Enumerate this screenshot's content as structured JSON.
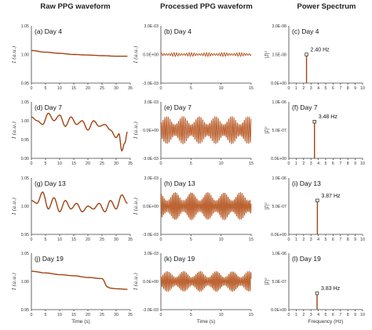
{
  "column_titles": [
    "Raw PPG waveform",
    "Processed PPG waveform",
    "Power Spectrum"
  ],
  "shared_x_labels": [
    "Time (s)",
    "Time (s)",
    "Frequency (Hz)"
  ],
  "chart_data": [
    {
      "id": "a",
      "type": "line",
      "annotation": "(a) Day 4",
      "ylabel": "I (a.u.)",
      "xlabel": "",
      "xlim": [
        0,
        35
      ],
      "ylim": [
        0.95,
        1.05
      ],
      "xticks": [
        0,
        5,
        10,
        15,
        20,
        25,
        30,
        35
      ],
      "yticks": [
        "0.95",
        "1.00",
        "1.05"
      ],
      "series": [
        {
          "x": [
            0,
            5,
            10,
            15,
            20,
            25,
            30,
            34
          ],
          "y": [
            1.007,
            1.004,
            1.002,
            1.0,
            0.999,
            0.998,
            0.997,
            0.997
          ]
        }
      ]
    },
    {
      "id": "b",
      "type": "line",
      "annotation": "(b) Day 4",
      "ylabel": "I (a.u.)",
      "xlabel": "",
      "xlim": [
        0,
        15
      ],
      "ylim": [
        -0.003,
        0.003
      ],
      "xticks": [
        0,
        5,
        10,
        15
      ],
      "yticks": [
        "-3.0E-03",
        "0.0E+00",
        "3.0E-03"
      ],
      "series": [
        {
          "x": [
            0,
            15
          ],
          "amplitude": 0.0002,
          "frequency_hz": 2.4
        }
      ]
    },
    {
      "id": "c",
      "type": "bar",
      "annotation": "(c) Day 4",
      "ylabel": "|I|²",
      "xlabel": "",
      "xlim": [
        0,
        10
      ],
      "ylim": [
        0,
        3e-08
      ],
      "xticks": [
        0,
        1,
        2,
        3,
        4,
        5,
        6,
        7,
        8,
        9,
        10
      ],
      "yticks": [
        "0.0E+00",
        "1.5E-08",
        "3.0E-08"
      ],
      "peak_label": "2.40 Hz",
      "series": [
        {
          "x": [
            2.4
          ],
          "y": [
            1.5e-08
          ]
        }
      ]
    },
    {
      "id": "d",
      "type": "line",
      "annotation": "(d) Day 7",
      "ylabel": "I (a.u.)",
      "xlabel": "",
      "xlim": [
        0,
        35
      ],
      "ylim": [
        0.9,
        1.05
      ],
      "xticks": [
        0,
        5,
        10,
        15,
        20,
        25,
        30,
        35
      ],
      "yticks": [
        "0.90",
        "0.95",
        "1.00",
        "1.05"
      ],
      "series": [
        {
          "x": [
            0,
            2,
            4,
            6,
            8,
            10,
            12,
            14,
            16,
            18,
            20,
            22,
            24,
            26,
            28,
            30,
            31,
            32,
            33,
            34
          ],
          "y": [
            1.01,
            1.0,
            0.99,
            1.02,
            1.0,
            1.015,
            0.985,
            1.01,
            0.99,
            1.0,
            0.975,
            1.0,
            0.985,
            0.99,
            0.975,
            0.955,
            0.965,
            0.92,
            0.94,
            0.97
          ]
        }
      ]
    },
    {
      "id": "e",
      "type": "line",
      "annotation": "(e) Day 7",
      "ylabel": "I (a.u.)",
      "xlabel": "",
      "xlim": [
        0,
        15
      ],
      "ylim": [
        -0.003,
        0.003
      ],
      "xticks": [
        0,
        5,
        10,
        15
      ],
      "yticks": [
        "-3.0E-03",
        "0.0E+00",
        "3.0E-03"
      ],
      "series": [
        {
          "x": [
            0,
            15
          ],
          "amplitude": 0.0015,
          "frequency_hz": 3.48
        }
      ]
    },
    {
      "id": "f",
      "type": "bar",
      "annotation": "(f) Day 7",
      "ylabel": "|I|²",
      "xlabel": "",
      "xlim": [
        0,
        10
      ],
      "ylim": [
        0,
        1e-06
      ],
      "xticks": [
        0,
        1,
        2,
        3,
        4,
        5,
        6,
        7,
        8,
        9,
        10
      ],
      "yticks": [
        "0.0E+00",
        "5.0E-07",
        "1.0E-06"
      ],
      "peak_label": "3.48 Hz",
      "series": [
        {
          "x": [
            3.48
          ],
          "y": [
            6.5e-07
          ]
        }
      ]
    },
    {
      "id": "g",
      "type": "line",
      "annotation": "(g) Day 13",
      "ylabel": "I (a.u.)",
      "xlabel": "",
      "xlim": [
        0,
        35
      ],
      "ylim": [
        0.95,
        1.05
      ],
      "xticks": [
        0,
        5,
        10,
        15,
        20,
        25,
        30,
        35
      ],
      "yticks": [
        "0.95",
        "1.00",
        "1.05"
      ],
      "series": [
        {
          "x": [
            0,
            2,
            4,
            6,
            8,
            10,
            12,
            14,
            16,
            18,
            20,
            22,
            24,
            26,
            28,
            30,
            32,
            34
          ],
          "y": [
            1.01,
            1.005,
            1.025,
            0.995,
            1.015,
            0.99,
            1.01,
            0.995,
            1.005,
            0.99,
            1.0,
            0.995,
            1.005,
            0.99,
            1.01,
            0.995,
            1.02,
            1.005
          ]
        }
      ]
    },
    {
      "id": "h",
      "type": "line",
      "annotation": "(h) Day 13",
      "ylabel": "I (a.u.)",
      "xlabel": "",
      "xlim": [
        0,
        15
      ],
      "ylim": [
        -0.003,
        0.003
      ],
      "xticks": [
        0,
        5,
        10,
        15
      ],
      "yticks": [
        "-3.0E-03",
        "0.0E+00",
        "3.0E-03"
      ],
      "series": [
        {
          "x": [
            0,
            15
          ],
          "amplitude": 0.0015,
          "frequency_hz": 3.87
        }
      ]
    },
    {
      "id": "i",
      "type": "bar",
      "annotation": "(i) Day 13",
      "ylabel": "|I|²",
      "xlabel": "",
      "xlim": [
        0,
        10
      ],
      "ylim": [
        0,
        1e-06
      ],
      "xticks": [
        0,
        1,
        2,
        3,
        4,
        5,
        6,
        7,
        8,
        9,
        10
      ],
      "yticks": [
        "0.0E+00",
        "5.0E-07",
        "1.0E-06"
      ],
      "peak_label": "3.87 Hz",
      "series": [
        {
          "x": [
            3.87
          ],
          "y": [
            6e-07
          ]
        }
      ]
    },
    {
      "id": "j",
      "type": "line",
      "annotation": "(j) Day 19",
      "ylabel": "I (a.u.)",
      "xlabel": "Time (s)",
      "xlim": [
        0,
        35
      ],
      "ylim": [
        0.95,
        1.05
      ],
      "xticks": [
        0,
        5,
        10,
        15,
        20,
        25,
        30,
        35
      ],
      "yticks": [
        "0.95",
        "1.00",
        "1.05"
      ],
      "series": [
        {
          "x": [
            0,
            5,
            10,
            15,
            20,
            25,
            27,
            28,
            30,
            34
          ],
          "y": [
            1.018,
            1.015,
            1.012,
            1.01,
            1.007,
            1.005,
            0.99,
            0.988,
            0.987,
            0.986
          ]
        }
      ]
    },
    {
      "id": "k",
      "type": "line",
      "annotation": "(k) Day 19",
      "ylabel": "I (a.u.)",
      "xlabel": "Time (s)",
      "xlim": [
        0,
        15
      ],
      "ylim": [
        -0.003,
        0.003
      ],
      "xticks": [
        0,
        5,
        10,
        15
      ],
      "yticks": [
        "-3.0E-03",
        "0.0E+00",
        "3.0E-03"
      ],
      "series": [
        {
          "x": [
            0,
            15
          ],
          "amplitude": 0.0011,
          "frequency_hz": 3.83
        }
      ]
    },
    {
      "id": "l",
      "type": "bar",
      "annotation": "(l) Day 19",
      "ylabel": "|I|²",
      "xlabel": "Frequency (Hz)",
      "xlim": [
        0,
        10
      ],
      "ylim": [
        0,
        1e-06
      ],
      "xticks": [
        0,
        1,
        2,
        3,
        4,
        5,
        6,
        7,
        8,
        9,
        10
      ],
      "yticks": [
        "0.0E+00",
        "5.0E-07",
        "1.0E-06"
      ],
      "peak_label": "3.83 Hz",
      "series": [
        {
          "x": [
            3.83
          ],
          "y": [
            2.9e-07
          ]
        }
      ]
    }
  ]
}
